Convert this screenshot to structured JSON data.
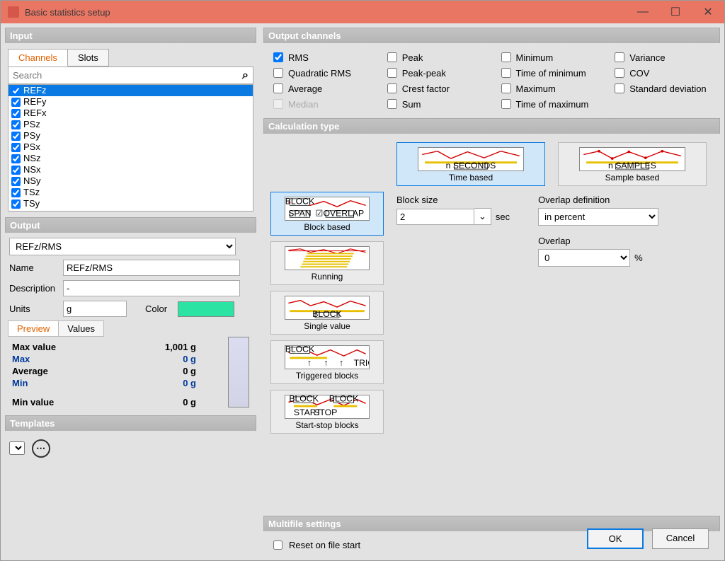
{
  "window": {
    "title": "Basic statistics setup"
  },
  "input": {
    "header": "Input",
    "tabs": {
      "channels": "Channels",
      "slots": "Slots"
    },
    "search_placeholder": "Search",
    "items": [
      "REFz",
      "REFy",
      "REFx",
      "PSz",
      "PSy",
      "PSx",
      "NSz",
      "NSx",
      "NSy",
      "TSz",
      "TSy"
    ],
    "selected_index": 0
  },
  "output": {
    "header": "Output",
    "dropdown_value": "REFz/RMS",
    "name_label": "Name",
    "name_value": "REFz/RMS",
    "desc_label": "Description",
    "desc_value": "-",
    "units_label": "Units",
    "units_value": "g",
    "color_label": "Color",
    "color_hex": "#2be3a3",
    "preview_tab": "Preview",
    "values_tab": "Values",
    "stats": {
      "maxvalue_label": "Max value",
      "maxvalue": "1,001 g",
      "max_label": "Max",
      "max": "0 g",
      "avg_label": "Average",
      "avg": "0 g",
      "min_label": "Min",
      "min": "0 g",
      "minvalue_label": "Min value",
      "minvalue": "0 g"
    }
  },
  "templates": {
    "header": "Templates",
    "value": ""
  },
  "output_channels": {
    "header": "Output channels",
    "items": [
      {
        "label": "RMS",
        "checked": true
      },
      {
        "label": "Peak",
        "checked": false
      },
      {
        "label": "Minimum",
        "checked": false
      },
      {
        "label": "Variance",
        "checked": false
      },
      {
        "label": "Quadratic RMS",
        "checked": false
      },
      {
        "label": "Peak-peak",
        "checked": false
      },
      {
        "label": "Time of minimum",
        "checked": false
      },
      {
        "label": "COV",
        "checked": false
      },
      {
        "label": "Average",
        "checked": false
      },
      {
        "label": "Crest factor",
        "checked": false
      },
      {
        "label": "Maximum",
        "checked": false
      },
      {
        "label": "Standard deviation",
        "checked": false
      },
      {
        "label": "Median",
        "checked": false,
        "disabled": true
      },
      {
        "label": "Sum",
        "checked": false
      },
      {
        "label": "Time of maximum",
        "checked": false
      }
    ]
  },
  "calc": {
    "header": "Calculation type",
    "time_based": "Time based",
    "sample_based": "Sample based",
    "block_based": "Block based",
    "running": "Running",
    "single_value": "Single value",
    "triggered": "Triggered blocks",
    "startstop": "Start-stop blocks",
    "mini_seconds": "n SECONDS",
    "mini_samples": "n SAMPLES",
    "mini_block": "BLOCK",
    "mini_span": "SPAN",
    "mini_overlap": "OVERLAP",
    "mini_triggers": "TRIGGERS",
    "mini_start": "START",
    "mini_stop": "STOP",
    "block_size_label": "Block size",
    "block_size_value": "2",
    "block_size_unit": "sec",
    "overlap_def_label": "Overlap definition",
    "overlap_def_value": "in percent",
    "overlap_label": "Overlap",
    "overlap_value": "0",
    "overlap_unit": "%"
  },
  "multifile": {
    "header": "Multifile settings",
    "reset_label": "Reset on file start",
    "reset_checked": false
  },
  "buttons": {
    "ok": "OK",
    "cancel": "Cancel"
  }
}
